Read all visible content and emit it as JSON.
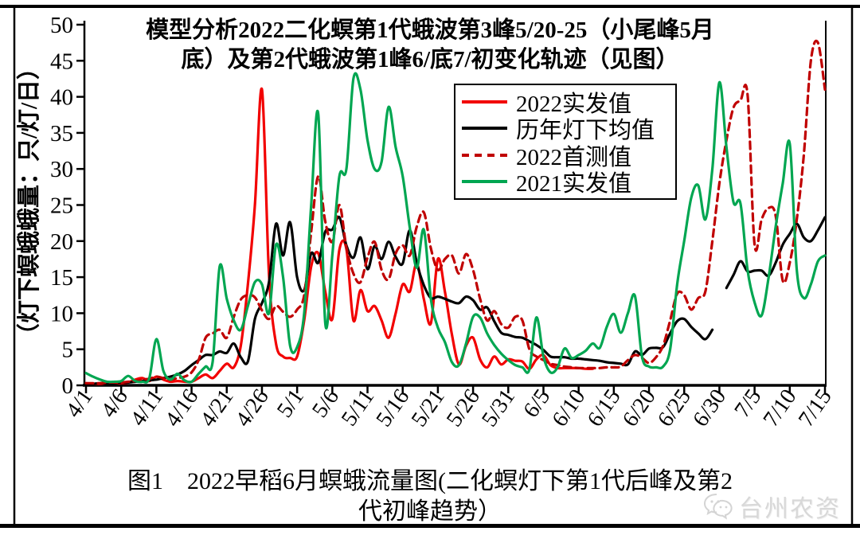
{
  "page": {
    "background": "#ffffff",
    "frame_color": "#000000"
  },
  "title": {
    "line1": "模型分析2022二化螟第1代蛾波第3峰5/20-25（小尾峰5月",
    "line2": "底）及第2代蛾波第1峰6/底7/初变化轨迹（见图）"
  },
  "y_axis": {
    "label": "（灯下螟蛾蛾量：只/灯/日）",
    "ticks": [
      0,
      5,
      10,
      15,
      20,
      25,
      30,
      35,
      40,
      45,
      50
    ]
  },
  "x_axis": {
    "ticks": [
      "4/1",
      "4/6",
      "4/11",
      "4/16",
      "4/21",
      "4/26",
      "5/1",
      "5/6",
      "5/11",
      "5/16",
      "5/21",
      "5/26",
      "5/31",
      "6/5",
      "6/10",
      "6/15",
      "6/20",
      "6/25",
      "6/30",
      "7/5",
      "7/10",
      "7/15"
    ]
  },
  "legend": {
    "position": "upper-center-right",
    "entries": [
      {
        "label": "2022实发值",
        "color": "#f20000",
        "dash": false
      },
      {
        "label": "历年灯下均值",
        "color": "#000000",
        "dash": false
      },
      {
        "label": "2022首测值",
        "color": "#c00000",
        "dash": true
      },
      {
        "label": "2021实发值",
        "color": "#00a651",
        "dash": false
      }
    ]
  },
  "caption": {
    "line1": "图1　2022早稻6月螟蛾流量图(二化螟灯下第1代后峰及第2",
    "line2": "代初峰趋势）"
  },
  "watermark": {
    "icon": "wechat-icon",
    "text": "台州农资",
    "color": "#d8d8d8"
  },
  "chart_data": {
    "type": "line",
    "title": "模型分析2022二化螟第1代蛾波第3峰5/20-25（小尾峰5月底）及第2代蛾波第1峰6/底7/初变化轨迹（见图）",
    "xlabel": "",
    "ylabel": "（灯下螟蛾蛾量：只/灯/日）",
    "ylim": [
      0,
      50
    ],
    "grid": false,
    "x_start": "4/1",
    "x_end": "7/15",
    "x_step_days": 1,
    "n_points": 106,
    "x_tick_labels": [
      "4/1",
      "4/6",
      "4/11",
      "4/16",
      "4/21",
      "4/26",
      "5/1",
      "5/6",
      "5/11",
      "5/16",
      "5/21",
      "5/26",
      "5/31",
      "6/5",
      "6/10",
      "6/15",
      "6/20",
      "6/25",
      "6/30",
      "7/5",
      "7/10",
      "7/15"
    ],
    "series": [
      {
        "name": "2022实发值",
        "color": "#f20000",
        "dash": false,
        "values": [
          0.3,
          0.2,
          0.2,
          0.3,
          0.3,
          0.3,
          0.4,
          0.8,
          1.0,
          0.6,
          1.2,
          0.8,
          0.5,
          0.6,
          0.5,
          0.5,
          1.0,
          1.5,
          1.0,
          2.0,
          3.0,
          2.5,
          5.5,
          14.0,
          25.0,
          41.0,
          15.4,
          5.8,
          4.0,
          3.8,
          4.0,
          9.0,
          16.5,
          18.3,
          13.0,
          9.2,
          18.8,
          18.9,
          9.0,
          13.2,
          10.3,
          11.0,
          9.0,
          6.6,
          10.0,
          14.0,
          13.0,
          16.9,
          12.0,
          8.6,
          17.5,
          13.0,
          7.0,
          2.9,
          5.5,
          6.6,
          3.6,
          2.5,
          4.0,
          2.9,
          3.6,
          3.4,
          3.3,
          2.3,
          3.6,
          4.2,
          2.8,
          2.4,
          2.4,
          2.4,
          2.4,
          2.3,
          2.3,
          null,
          null,
          null,
          null,
          null,
          null,
          null,
          null,
          null,
          null,
          null,
          null,
          null,
          null,
          null,
          null,
          null,
          null,
          null,
          null,
          null,
          null,
          null,
          null,
          null,
          null,
          null,
          null,
          null,
          null,
          null,
          null,
          null
        ]
      },
      {
        "name": "历年灯下均值",
        "color": "#000000",
        "dash": false,
        "values": [
          0.2,
          0.2,
          0.3,
          0.3,
          0.3,
          0.4,
          0.4,
          0.5,
          0.6,
          0.7,
          0.8,
          1.0,
          1.2,
          1.5,
          2.0,
          2.8,
          3.5,
          4.2,
          4.2,
          4.7,
          4.5,
          5.8,
          3.9,
          3.3,
          9.2,
          11.4,
          14.3,
          22.4,
          18.0,
          22.6,
          15.0,
          13.2,
          18.3,
          17.0,
          21.3,
          21.6,
          23.3,
          19.4,
          17.7,
          20.5,
          16.1,
          19.3,
          17.5,
          19.9,
          17.8,
          16.9,
          21.5,
          17.0,
          13.9,
          12.1,
          12.3,
          12.0,
          11.6,
          11.4,
          12.3,
          11.8,
          10.5,
          10.8,
          8.9,
          7.3,
          7.0,
          6.7,
          6.6,
          6.1,
          5.6,
          4.9,
          4.0,
          3.9,
          3.9,
          3.7,
          3.7,
          3.6,
          3.5,
          3.4,
          3.2,
          3.1,
          3.0,
          2.9,
          4.7,
          4.2,
          5.1,
          5.2,
          5.3,
          7.2,
          8.9,
          9.2,
          8.1,
          7.2,
          6.4,
          7.7,
          null,
          13.5,
          15.3,
          17.2,
          15.8,
          15.9,
          15.9,
          15.2,
          17.0,
          19.5,
          21.0,
          22.4,
          20.5,
          20.0,
          21.5,
          23.3
        ]
      },
      {
        "name": "2022首测值",
        "color": "#c00000",
        "dash": true,
        "values": [
          0.3,
          0.3,
          0.3,
          0.4,
          0.4,
          0.4,
          0.5,
          0.6,
          0.8,
          0.9,
          1.2,
          1.0,
          0.8,
          1.0,
          1.2,
          1.8,
          3.5,
          6.6,
          7.2,
          7.7,
          6.6,
          9.5,
          11.9,
          12.5,
          12.2,
          10.4,
          9.2,
          11.0,
          10.2,
          9.5,
          10.5,
          12.5,
          21.3,
          29.0,
          22.7,
          19.9,
          25.0,
          19.1,
          15.5,
          14.3,
          17.7,
          19.9,
          16.0,
          14.7,
          18.3,
          19.4,
          18.0,
          22.0,
          24.0,
          19.0,
          16.0,
          17.5,
          18.0,
          15.5,
          18.2,
          16.0,
          12.0,
          9.0,
          10.3,
          8.5,
          8.0,
          9.5,
          9.0,
          5.0,
          4.0,
          3.5,
          3.0,
          2.8,
          2.6,
          2.5,
          2.4,
          2.4,
          2.4,
          2.4,
          2.5,
          2.5,
          2.6,
          3.5,
          4.2,
          3.8,
          3.1,
          3.9,
          5.5,
          9.0,
          12.7,
          12.5,
          10.5,
          12.1,
          13.0,
          20.0,
          28.0,
          34.0,
          38.5,
          39.5,
          40.3,
          19.5,
          23.0,
          24.6,
          23.5,
          14.5,
          17.0,
          23.0,
          32.0,
          45.0,
          47.5,
          41.0
        ]
      },
      {
        "name": "2021实发值",
        "color": "#00a651",
        "dash": false,
        "values": [
          1.7,
          1.2,
          0.8,
          0.5,
          0.5,
          0.6,
          1.3,
          0.6,
          0.5,
          1.0,
          6.4,
          2.0,
          0.8,
          1.6,
          0.7,
          0.5,
          1.6,
          2.6,
          3.3,
          16.5,
          12.0,
          9.0,
          7.7,
          11.0,
          14.3,
          14.0,
          10.0,
          19.5,
          15.0,
          5.5,
          5.3,
          10.0,
          25.0,
          37.6,
          8.6,
          18.0,
          29.0,
          30.0,
          42.5,
          41.0,
          34.0,
          30.0,
          31.0,
          38.6,
          33.0,
          29.0,
          21.9,
          16.3,
          21.6,
          12.0,
          8.0,
          6.0,
          3.2,
          2.8,
          5.8,
          9.5,
          9.4,
          7.2,
          5.6,
          4.4,
          3.5,
          2.8,
          2.5,
          2.2,
          9.4,
          4.0,
          1.8,
          2.5,
          5.1,
          3.8,
          4.2,
          4.8,
          5.8,
          5.2,
          8.1,
          9.9,
          7.3,
          10.0,
          12.4,
          4.0,
          2.6,
          2.5,
          2.6,
          5.0,
          14.0,
          20.0,
          26.0,
          27.7,
          23.0,
          30.0,
          42.0,
          33.0,
          25.4,
          25.2,
          16.0,
          11.5,
          9.7,
          15.0,
          22.0,
          28.0,
          33.5,
          16.0,
          12.1,
          14.0,
          17.2,
          18.0
        ]
      }
    ]
  }
}
